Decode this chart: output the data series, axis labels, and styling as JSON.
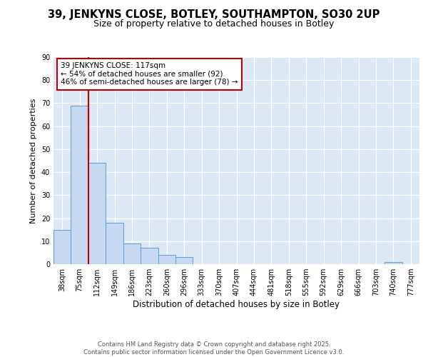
{
  "title_line1": "39, JENKYNS CLOSE, BOTLEY, SOUTHAMPTON, SO30 2UP",
  "title_line2": "Size of property relative to detached houses in Botley",
  "xlabel": "Distribution of detached houses by size in Botley",
  "ylabel": "Number of detached properties",
  "categories": [
    "38sqm",
    "75sqm",
    "112sqm",
    "149sqm",
    "186sqm",
    "223sqm",
    "260sqm",
    "296sqm",
    "333sqm",
    "370sqm",
    "407sqm",
    "444sqm",
    "481sqm",
    "518sqm",
    "555sqm",
    "592sqm",
    "629sqm",
    "666sqm",
    "703sqm",
    "740sqm",
    "777sqm"
  ],
  "values": [
    15,
    69,
    44,
    18,
    9,
    7,
    4,
    3,
    0,
    0,
    0,
    0,
    0,
    0,
    0,
    0,
    0,
    0,
    0,
    1,
    0
  ],
  "bar_color": "#c6d9f0",
  "bar_edge_color": "#5b9bd5",
  "vline_color": "#c00000",
  "annotation_text": "39 JENKYNS CLOSE: 117sqm\n← 54% of detached houses are smaller (92)\n46% of semi-detached houses are larger (78) →",
  "annotation_box_color": "#c00000",
  "ylim": [
    0,
    90
  ],
  "yticks": [
    0,
    10,
    20,
    30,
    40,
    50,
    60,
    70,
    80,
    90
  ],
  "fig_background_color": "#ffffff",
  "plot_background_color": "#dde8f5",
  "footer_text": "Contains HM Land Registry data © Crown copyright and database right 2025.\nContains public sector information licensed under the Open Government Licence v3.0.",
  "grid_color": "#ffffff",
  "title1_fontsize": 10.5,
  "title2_fontsize": 9.0,
  "ylabel_fontsize": 8.0,
  "xlabel_fontsize": 8.5,
  "tick_fontsize": 7.0,
  "annot_fontsize": 7.5
}
